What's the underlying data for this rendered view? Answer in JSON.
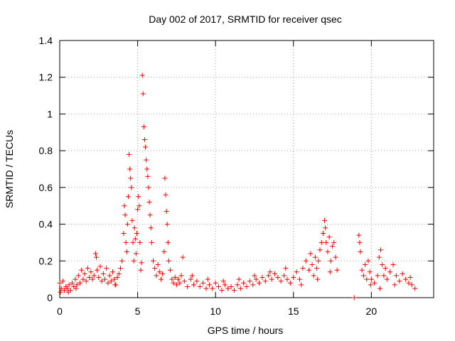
{
  "chart_data": {
    "type": "scatter",
    "title": "Day 002 of 2017, SRMTID for receiver qsec",
    "xlabel": "GPS time / hours",
    "ylabel": "SRMTID / TECUs",
    "xlim": [
      0,
      24
    ],
    "ylim": [
      0,
      1.4
    ],
    "x_ticks": [
      0,
      5,
      10,
      15,
      20
    ],
    "x_tick_labels": [
      "0",
      "5",
      "10",
      "15",
      "20"
    ],
    "y_ticks": [
      0,
      0.2,
      0.4,
      0.6,
      0.8,
      1,
      1.2,
      1.4
    ],
    "y_tick_labels": [
      "0",
      "0.2",
      "0.4",
      "0.6",
      "0.8",
      "1",
      "1.2",
      "1.4"
    ],
    "grid": true,
    "marker": "+",
    "color": "#ff0000",
    "series": [
      {
        "name": "SRMTID",
        "points": [
          [
            0.0,
            0.08
          ],
          [
            0.1,
            0.05
          ],
          [
            0.2,
            0.09
          ],
          [
            0.3,
            0.04
          ],
          [
            0.4,
            0.06
          ],
          [
            0.5,
            0.05
          ],
          [
            0.6,
            0.07
          ],
          [
            0.7,
            0.04
          ],
          [
            0.8,
            0.08
          ],
          [
            0.9,
            0.06
          ],
          [
            1.0,
            0.1
          ],
          [
            1.1,
            0.07
          ],
          [
            1.2,
            0.12
          ],
          [
            1.3,
            0.08
          ],
          [
            1.4,
            0.15
          ],
          [
            1.5,
            0.1
          ],
          [
            1.6,
            0.13
          ],
          [
            1.7,
            0.09
          ],
          [
            1.8,
            0.16
          ],
          [
            1.9,
            0.11
          ],
          [
            2.0,
            0.14
          ],
          [
            2.1,
            0.1
          ],
          [
            2.2,
            0.12
          ],
          [
            2.3,
            0.24
          ],
          [
            2.35,
            0.22
          ],
          [
            2.4,
            0.15
          ],
          [
            2.5,
            0.11
          ],
          [
            2.6,
            0.17
          ],
          [
            2.7,
            0.09
          ],
          [
            2.8,
            0.13
          ],
          [
            2.9,
            0.1
          ],
          [
            3.0,
            0.16
          ],
          [
            3.1,
            0.08
          ],
          [
            3.2,
            0.12
          ],
          [
            3.3,
            0.09
          ],
          [
            3.4,
            0.14
          ],
          [
            3.5,
            0.1
          ],
          [
            3.6,
            0.07
          ],
          [
            3.7,
            0.11
          ],
          [
            3.8,
            0.13
          ],
          [
            3.9,
            0.16
          ],
          [
            4.0,
            0.2
          ],
          [
            4.1,
            0.35
          ],
          [
            4.15,
            0.5
          ],
          [
            4.2,
            0.45
          ],
          [
            4.25,
            0.3
          ],
          [
            4.3,
            0.25
          ],
          [
            4.35,
            0.4
          ],
          [
            4.4,
            0.55
          ],
          [
            4.45,
            0.78
          ],
          [
            4.5,
            0.7
          ],
          [
            4.55,
            0.65
          ],
          [
            4.6,
            0.6
          ],
          [
            4.65,
            0.42
          ],
          [
            4.7,
            0.3
          ],
          [
            4.75,
            0.2
          ],
          [
            4.8,
            0.38
          ],
          [
            4.85,
            0.32
          ],
          [
            4.9,
            0.24
          ],
          [
            4.95,
            0.35
          ],
          [
            5.0,
            0.48
          ],
          [
            5.05,
            0.55
          ],
          [
            5.1,
            0.5
          ],
          [
            5.15,
            0.3
          ],
          [
            5.2,
            0.15
          ],
          [
            5.25,
            0.19
          ],
          [
            5.3,
            1.21
          ],
          [
            5.35,
            1.11
          ],
          [
            5.4,
            0.93
          ],
          [
            5.45,
            0.86
          ],
          [
            5.5,
            0.82
          ],
          [
            5.55,
            0.75
          ],
          [
            5.6,
            0.7
          ],
          [
            5.65,
            0.66
          ],
          [
            5.7,
            0.6
          ],
          [
            5.75,
            0.52
          ],
          [
            5.8,
            0.45
          ],
          [
            5.85,
            0.38
          ],
          [
            5.9,
            0.3
          ],
          [
            6.0,
            0.2
          ],
          [
            6.1,
            0.16
          ],
          [
            6.2,
            0.12
          ],
          [
            6.3,
            0.18
          ],
          [
            6.4,
            0.14
          ],
          [
            6.5,
            0.1
          ],
          [
            6.6,
            0.13
          ],
          [
            6.7,
            0.25
          ],
          [
            6.75,
            0.65
          ],
          [
            6.8,
            0.56
          ],
          [
            6.85,
            0.47
          ],
          [
            6.9,
            0.4
          ],
          [
            6.95,
            0.3
          ],
          [
            7.0,
            0.2
          ],
          [
            7.1,
            0.15
          ],
          [
            7.2,
            0.1
          ],
          [
            7.3,
            0.08
          ],
          [
            7.4,
            0.11
          ],
          [
            7.5,
            0.07
          ],
          [
            7.6,
            0.1
          ],
          [
            7.7,
            0.08
          ],
          [
            7.8,
            0.12
          ],
          [
            7.9,
            0.22
          ],
          [
            8.0,
            0.09
          ],
          [
            8.2,
            0.06
          ],
          [
            8.4,
            0.1
          ],
          [
            8.6,
            0.07
          ],
          [
            8.8,
            0.09
          ],
          [
            9.0,
            0.06
          ],
          [
            9.2,
            0.08
          ],
          [
            9.4,
            0.05
          ],
          [
            9.6,
            0.07
          ],
          [
            9.8,
            0.05
          ],
          [
            10.0,
            0.08
          ],
          [
            10.2,
            0.06
          ],
          [
            10.4,
            0.04
          ],
          [
            10.6,
            0.07
          ],
          [
            10.8,
            0.05
          ],
          [
            11.0,
            0.06
          ],
          [
            11.2,
            0.04
          ],
          [
            11.4,
            0.07
          ],
          [
            11.6,
            0.05
          ],
          [
            11.8,
            0.08
          ],
          [
            12.0,
            0.06
          ],
          [
            12.2,
            0.09
          ],
          [
            12.4,
            0.07
          ],
          [
            12.6,
            0.1
          ],
          [
            12.8,
            0.08
          ],
          [
            13.0,
            0.11
          ],
          [
            13.2,
            0.09
          ],
          [
            13.4,
            0.12
          ],
          [
            13.6,
            0.1
          ],
          [
            13.8,
            0.13
          ],
          [
            14.0,
            0.11
          ],
          [
            14.2,
            0.09
          ],
          [
            14.4,
            0.12
          ],
          [
            14.6,
            0.1
          ],
          [
            14.8,
            0.08
          ],
          [
            15.0,
            0.11
          ],
          [
            15.2,
            0.14
          ],
          [
            15.4,
            0.1
          ],
          [
            15.6,
            0.16
          ],
          [
            15.8,
            0.2
          ],
          [
            16.0,
            0.15
          ],
          [
            16.1,
            0.24
          ],
          [
            16.2,
            0.18
          ],
          [
            16.3,
            0.12
          ],
          [
            16.4,
            0.22
          ],
          [
            16.5,
            0.16
          ],
          [
            16.6,
            0.2
          ],
          [
            16.7,
            0.26
          ],
          [
            16.8,
            0.3
          ],
          [
            16.9,
            0.35
          ],
          [
            17.0,
            0.42
          ],
          [
            17.05,
            0.38
          ],
          [
            17.1,
            0.3
          ],
          [
            17.2,
            0.25
          ],
          [
            17.3,
            0.33
          ],
          [
            17.4,
            0.2
          ],
          [
            17.5,
            0.28
          ],
          [
            17.6,
            0.3
          ],
          [
            17.7,
            0.22
          ],
          [
            17.8,
            0.15
          ],
          [
            19.2,
            0.34
          ],
          [
            19.25,
            0.3
          ],
          [
            19.3,
            0.25
          ],
          [
            19.4,
            0.15
          ],
          [
            19.5,
            0.12
          ],
          [
            19.6,
            0.18
          ],
          [
            19.7,
            0.1
          ],
          [
            19.8,
            0.2
          ],
          [
            19.9,
            0.14
          ],
          [
            20.0,
            0.1
          ],
          [
            20.2,
            0.08
          ],
          [
            20.4,
            0.12
          ],
          [
            20.5,
            0.22
          ],
          [
            20.6,
            0.26
          ],
          [
            20.7,
            0.18
          ],
          [
            20.8,
            0.12
          ],
          [
            20.9,
            0.16
          ],
          [
            21.0,
            0.1
          ],
          [
            21.2,
            0.14
          ],
          [
            21.4,
            0.18
          ],
          [
            21.6,
            0.12
          ],
          [
            21.8,
            0.09
          ],
          [
            22.0,
            0.13
          ],
          [
            22.2,
            0.1
          ],
          [
            22.4,
            0.08
          ],
          [
            22.6,
            0.07
          ],
          [
            22.8,
            0.05
          ],
          [
            18.9,
            0.0
          ],
          [
            0.05,
            0.03
          ],
          [
            0.55,
            0.03
          ],
          [
            1.05,
            0.05
          ],
          [
            3.55,
            0.07
          ],
          [
            8.5,
            0.12
          ],
          [
            9.5,
            0.1
          ],
          [
            10.5,
            0.09
          ],
          [
            11.5,
            0.1
          ],
          [
            12.5,
            0.12
          ],
          [
            13.5,
            0.14
          ],
          [
            14.5,
            0.16
          ],
          [
            15.5,
            0.07
          ],
          [
            16.55,
            0.1
          ],
          [
            17.35,
            0.14
          ],
          [
            19.95,
            0.07
          ],
          [
            20.55,
            0.05
          ],
          [
            21.5,
            0.07
          ],
          [
            22.5,
            0.11
          ]
        ]
      }
    ]
  }
}
